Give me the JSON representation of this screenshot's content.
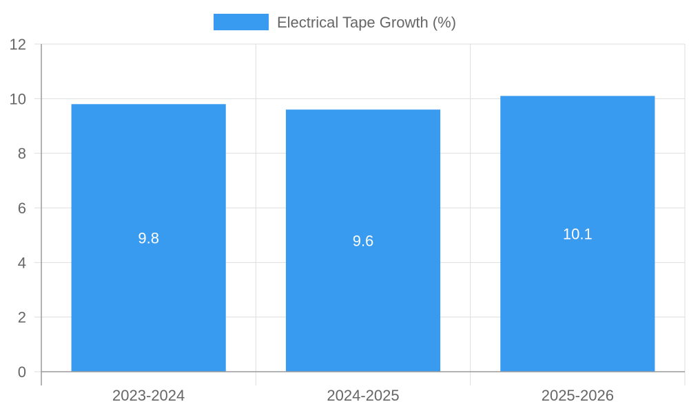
{
  "chart_data": {
    "type": "bar",
    "categories": [
      "2023-2024",
      "2024-2025",
      "2025-2026"
    ],
    "series": [
      {
        "name": "Electrical Tape Growth (%)",
        "values": [
          9.8,
          9.6,
          10.1
        ],
        "color": "#399bf0"
      }
    ],
    "data_labels": [
      "9.8",
      "9.6",
      "10.1"
    ],
    "ylim": [
      0,
      12
    ],
    "y_ticks": [
      0,
      2,
      4,
      6,
      8,
      10,
      12
    ],
    "grid": true,
    "legend_position": "top-center",
    "colors": {
      "bar": "#399bf0",
      "grid": "#dddddd",
      "axis": "#999999",
      "tick_text": "#666666",
      "data_label_text": "#ffffff"
    }
  }
}
